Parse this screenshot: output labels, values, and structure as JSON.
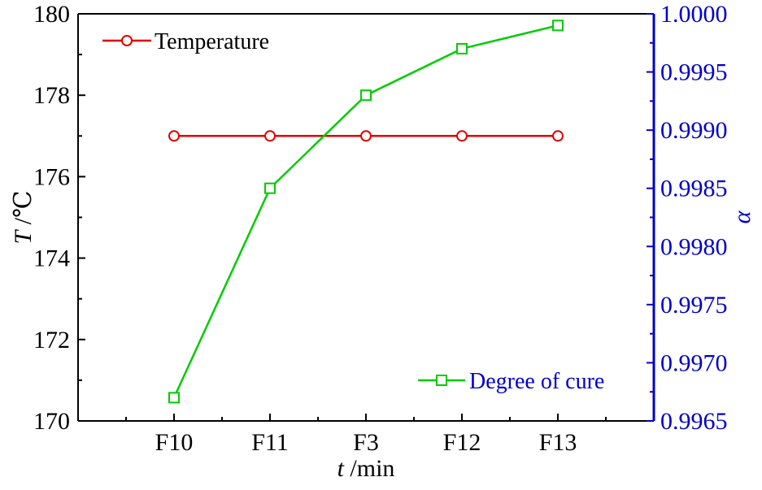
{
  "chart_data": {
    "type": "line",
    "categories": [
      "F10",
      "F11",
      "F3",
      "F12",
      "F13"
    ],
    "xlabel": {
      "italic": "t",
      "rest": " /min"
    },
    "ylabel_left": {
      "italic": "T",
      "rest": " /℃"
    },
    "ylabel_right": "α",
    "ylim_left": [
      170,
      180
    ],
    "ylim_right": [
      0.9965,
      1.0
    ],
    "yticks_left": [
      "170",
      "172",
      "174",
      "176",
      "178",
      "180"
    ],
    "yticks_right": [
      "0.9965",
      "0.9970",
      "0.9975",
      "0.9980",
      "0.9985",
      "0.9990",
      "0.9995",
      "1.0000"
    ],
    "grid": false,
    "series": [
      {
        "name": "Temperature",
        "axis": "left",
        "color": "#e00000",
        "marker": "circle",
        "values": [
          177,
          177,
          177,
          177,
          177
        ]
      },
      {
        "name": "Degree of cure",
        "axis": "right",
        "color": "#00cc00",
        "marker": "square",
        "values": [
          0.9967,
          0.9985,
          0.9993,
          0.9997,
          0.9999
        ]
      }
    ],
    "colors": {
      "left_axis": "#000000",
      "right_axis": "#0000cc"
    }
  }
}
